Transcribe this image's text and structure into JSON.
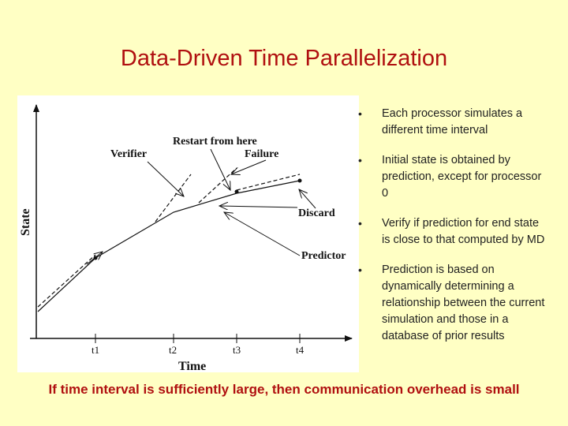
{
  "slide": {
    "title": "Data-Driven Time Parallelization",
    "footer": "If time interval is sufficiently large, then communication overhead is small"
  },
  "figure": {
    "ylabel": "State",
    "xlabel": "Time",
    "ticks": [
      "t1",
      "t2",
      "t3",
      "t4"
    ],
    "labels": {
      "restart": "Restart from here",
      "verifier": "Verifier",
      "failure": "Failure",
      "discard": "Discard",
      "predictor": "Predictor"
    }
  },
  "bullets": [
    "Each processor simulates a different time interval",
    "Initial state is obtained by prediction, except for processor 0",
    "Verify if prediction for end state is close to that computed by MD",
    "Prediction is based on dynamically determining a relationship between the current simulation and those in a database of prior results"
  ],
  "colors": {
    "background": "#ffffc4",
    "title": "#b01010"
  }
}
